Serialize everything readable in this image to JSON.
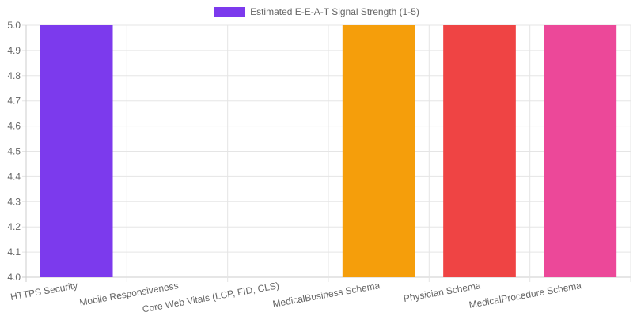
{
  "chart_data": {
    "type": "bar",
    "title": "",
    "xlabel": "",
    "ylabel": "",
    "categories": [
      "HTTPS Security",
      "Mobile Responsiveness",
      "Core Web Vitals (LCP, FID, CLS)",
      "MedicalBusiness Schema",
      "Physician Schema",
      "MedicalProcedure Schema"
    ],
    "series": [
      {
        "name": "Estimated E-E-A-T Signal Strength (1-5)",
        "values": [
          5,
          4,
          4,
          5,
          5,
          5
        ],
        "colors": [
          "#7c3aed",
          "#3b82f6",
          "#10b981",
          "#f59e0b",
          "#ef4444",
          "#ec4899"
        ]
      }
    ],
    "ylim": [
      4.0,
      5.0
    ],
    "yticks": [
      "4.0",
      "4.1",
      "4.2",
      "4.3",
      "4.4",
      "4.5",
      "4.6",
      "4.7",
      "4.8",
      "4.9",
      "5.0"
    ],
    "grid": true,
    "legend": "top",
    "legend_color": "#7c3aed"
  }
}
